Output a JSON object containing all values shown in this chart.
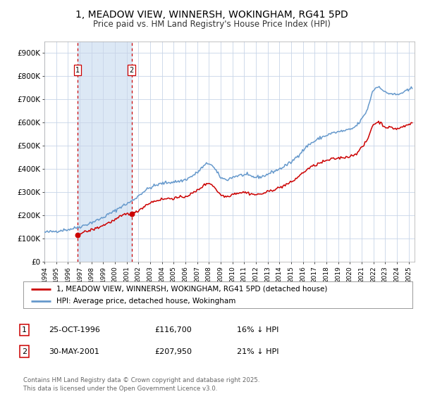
{
  "title": "1, MEADOW VIEW, WINNERSH, WOKINGHAM, RG41 5PD",
  "subtitle": "Price paid vs. HM Land Registry's House Price Index (HPI)",
  "background_color": "#ffffff",
  "plot_bg_color": "#ffffff",
  "grid_color": "#c8d4e8",
  "sale1_date": 1996.81,
  "sale1_price": 116700,
  "sale1_label": "1",
  "sale1_display": "25-OCT-1996",
  "sale1_hpi_pct": "16% ↓ HPI",
  "sale2_date": 2001.41,
  "sale2_price": 207950,
  "sale2_label": "2",
  "sale2_display": "30-MAY-2001",
  "sale2_hpi_pct": "21% ↓ HPI",
  "red_color": "#cc0000",
  "blue_color": "#6699cc",
  "shade_color": "#dce8f5",
  "vline_color": "#cc0000",
  "ylim": [
    0,
    950000
  ],
  "xlim_start": 1994.0,
  "xlim_end": 2025.5,
  "legend_label_red": "1, MEADOW VIEW, WINNERSH, WOKINGHAM, RG41 5PD (detached house)",
  "legend_label_blue": "HPI: Average price, detached house, Wokingham",
  "footer": "Contains HM Land Registry data © Crown copyright and database right 2025.\nThis data is licensed under the Open Government Licence v3.0.",
  "yticks": [
    0,
    100000,
    200000,
    300000,
    400000,
    500000,
    600000,
    700000,
    800000,
    900000
  ],
  "ytick_labels": [
    "£0",
    "£100K",
    "£200K",
    "£300K",
    "£400K",
    "£500K",
    "£600K",
    "£700K",
    "£800K",
    "£900K"
  ],
  "hpi_keypoints_x": [
    1994.0,
    1994.5,
    1995.0,
    1995.5,
    1996.0,
    1996.5,
    1997.0,
    1997.5,
    1998.0,
    1998.5,
    1999.0,
    1999.5,
    2000.0,
    2000.5,
    2001.0,
    2001.5,
    2002.0,
    2002.5,
    2003.0,
    2003.5,
    2004.0,
    2004.5,
    2005.0,
    2005.5,
    2006.0,
    2006.5,
    2007.0,
    2007.5,
    2008.0,
    2008.5,
    2009.0,
    2009.5,
    2010.0,
    2010.5,
    2011.0,
    2011.5,
    2012.0,
    2012.5,
    2013.0,
    2013.5,
    2014.0,
    2014.5,
    2015.0,
    2015.5,
    2016.0,
    2016.5,
    2017.0,
    2017.5,
    2018.0,
    2018.5,
    2019.0,
    2019.5,
    2020.0,
    2020.5,
    2021.0,
    2021.5,
    2022.0,
    2022.5,
    2023.0,
    2023.5,
    2024.0,
    2024.5,
    2025.0,
    2025.3
  ],
  "hpi_keypoints_y": [
    128000,
    130000,
    133000,
    137000,
    140000,
    145000,
    152000,
    160000,
    170000,
    180000,
    192000,
    207000,
    220000,
    238000,
    250000,
    265000,
    285000,
    305000,
    320000,
    330000,
    338000,
    342000,
    345000,
    348000,
    355000,
    368000,
    385000,
    410000,
    425000,
    400000,
    365000,
    355000,
    365000,
    372000,
    375000,
    370000,
    365000,
    368000,
    378000,
    390000,
    400000,
    415000,
    430000,
    455000,
    480000,
    505000,
    520000,
    535000,
    545000,
    555000,
    560000,
    565000,
    570000,
    585000,
    615000,
    660000,
    740000,
    755000,
    730000,
    725000,
    720000,
    730000,
    740000,
    750000
  ],
  "price_keypoints_x": [
    1996.81,
    1997.0,
    1997.5,
    1998.0,
    1998.5,
    1999.0,
    1999.5,
    2000.0,
    2000.5,
    2001.0,
    2001.41,
    2001.5,
    2002.0,
    2002.5,
    2003.0,
    2003.5,
    2004.0,
    2004.5,
    2005.0,
    2005.5,
    2006.0,
    2006.5,
    2007.0,
    2007.5,
    2008.0,
    2008.5,
    2009.0,
    2009.5,
    2010.0,
    2010.5,
    2011.0,
    2011.5,
    2012.0,
    2012.5,
    2013.0,
    2013.5,
    2014.0,
    2014.5,
    2015.0,
    2015.5,
    2016.0,
    2016.5,
    2017.0,
    2017.5,
    2018.0,
    2018.5,
    2019.0,
    2019.5,
    2020.0,
    2020.5,
    2021.0,
    2021.5,
    2022.0,
    2022.5,
    2023.0,
    2023.5,
    2024.0,
    2024.5,
    2025.0,
    2025.3
  ],
  "price_keypoints_y": [
    116700,
    122000,
    130000,
    138000,
    147000,
    158000,
    170000,
    181000,
    196000,
    207000,
    207950,
    208000,
    222000,
    240000,
    255000,
    264000,
    270000,
    273000,
    275000,
    277000,
    283000,
    293000,
    308000,
    327000,
    340000,
    320000,
    290000,
    282000,
    292000,
    298000,
    300000,
    295000,
    290000,
    294000,
    302000,
    312000,
    320000,
    332000,
    343000,
    363000,
    384000,
    403000,
    416000,
    427000,
    436000,
    443000,
    447000,
    451000,
    455000,
    467000,
    492000,
    528000,
    592000,
    602000,
    582000,
    578000,
    574000,
    582000,
    592000,
    600000
  ]
}
